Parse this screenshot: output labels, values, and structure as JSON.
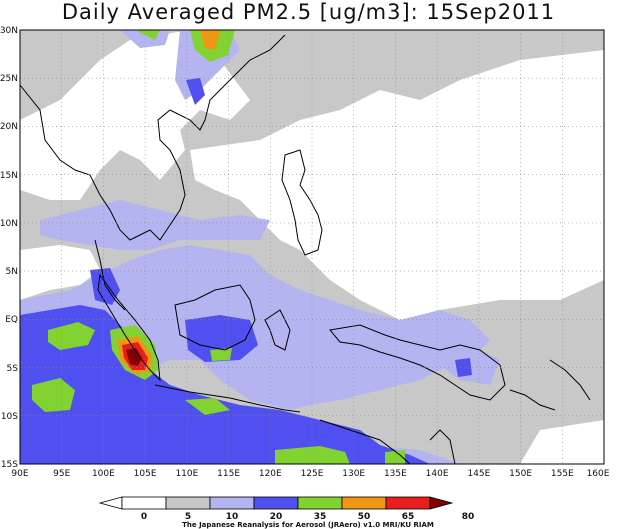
{
  "title": "Daily Averaged PM2.5 [ug/m3]: 15Sep2011",
  "map": {
    "lon_range": [
      90,
      160
    ],
    "lat_range": [
      -15,
      30
    ],
    "lon_ticks": [
      "90E",
      "95E",
      "100E",
      "105E",
      "110E",
      "115E",
      "120E",
      "125E",
      "130E",
      "135E",
      "140E",
      "145E",
      "150E",
      "155E",
      "160E"
    ],
    "lat_ticks": [
      "30N",
      "25N",
      "20N",
      "15N",
      "10N",
      "5N",
      "EQ",
      "5S",
      "10S",
      "15S"
    ],
    "gridlines": "dotted"
  },
  "colorbar": {
    "labels": [
      "0",
      "5",
      "10",
      "20",
      "35",
      "50",
      "65",
      "80"
    ],
    "colors": [
      "#ffffff",
      "#ffffff",
      "#c8c8c8",
      "#b4b4f0",
      "#5050f0",
      "#82d232",
      "#f09614",
      "#e61e1e",
      "#820000"
    ],
    "caption": "The Japanese Reanalysis for Aerosol (JRAero) v1.0 MRI/KU RIAM"
  }
}
